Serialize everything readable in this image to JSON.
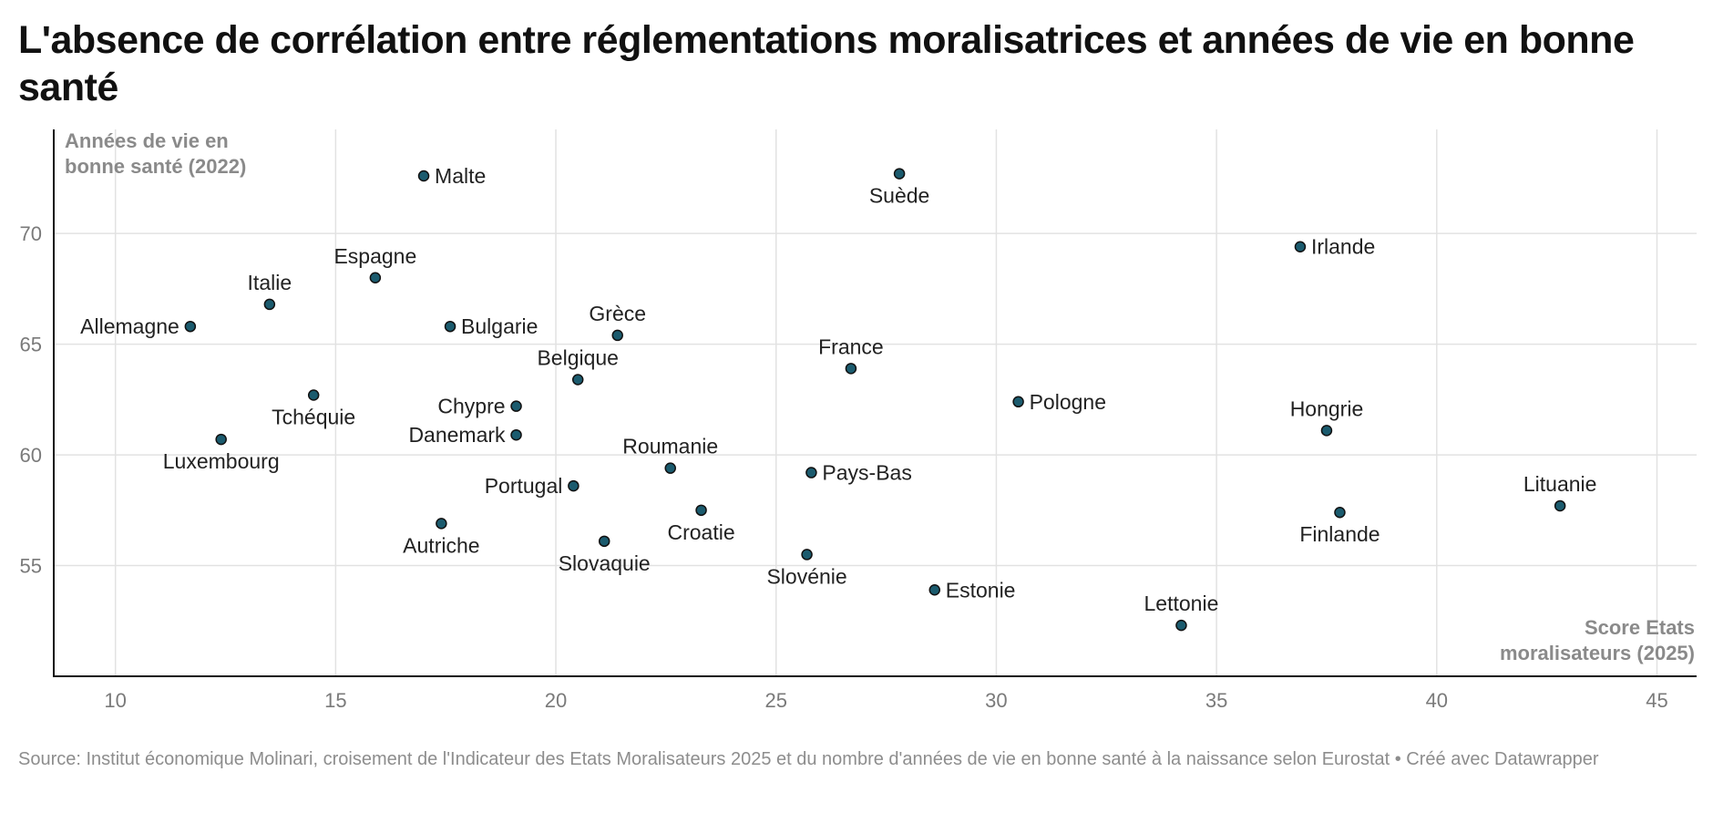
{
  "title": "L'absence de corrélation entre réglementations moralisatrices et années de vie en bonne santé",
  "footer": {
    "source": "Source: Institut économique Molinari, croisement de l'Indicateur des Etats Moralisateurs 2025 et du nombre d'années de vie en bonne santé à la naissance selon Eurostat • Créé avec Datawrapper"
  },
  "chart_data": {
    "type": "scatter",
    "title": "L'absence de corrélation entre réglementations moralisatrices et années de vie en bonne santé",
    "xlabel": [
      "Score Etats",
      "moralisateurs (2025)"
    ],
    "ylabel": [
      "Années de vie en",
      "bonne santé (2022)"
    ],
    "xlim": [
      8.6,
      45.9
    ],
    "ylim": [
      50,
      74.7
    ],
    "xticks": [
      10,
      15,
      20,
      25,
      30,
      35,
      40,
      45
    ],
    "yticks": [
      55,
      60,
      65,
      70
    ],
    "grid": true,
    "colors": {
      "point": "#1b5b6e"
    },
    "points": [
      {
        "label": "Malte",
        "x": 17.0,
        "y": 72.6,
        "pos": "right"
      },
      {
        "label": "Suède",
        "x": 27.8,
        "y": 72.7,
        "pos": "below"
      },
      {
        "label": "Irlande",
        "x": 36.9,
        "y": 69.4,
        "pos": "right"
      },
      {
        "label": "Espagne",
        "x": 15.9,
        "y": 68.0,
        "pos": "above"
      },
      {
        "label": "Italie",
        "x": 13.5,
        "y": 66.8,
        "pos": "above"
      },
      {
        "label": "Allemagne",
        "x": 11.7,
        "y": 65.8,
        "pos": "left"
      },
      {
        "label": "Bulgarie",
        "x": 17.6,
        "y": 65.8,
        "pos": "right"
      },
      {
        "label": "Grèce",
        "x": 21.4,
        "y": 65.4,
        "pos": "above"
      },
      {
        "label": "Belgique",
        "x": 20.5,
        "y": 63.4,
        "pos": "above"
      },
      {
        "label": "France",
        "x": 26.7,
        "y": 63.9,
        "pos": "above"
      },
      {
        "label": "Pologne",
        "x": 30.5,
        "y": 62.4,
        "pos": "right"
      },
      {
        "label": "Tchéquie",
        "x": 14.5,
        "y": 62.7,
        "pos": "below"
      },
      {
        "label": "Chypre",
        "x": 19.1,
        "y": 62.2,
        "pos": "left"
      },
      {
        "label": "Danemark",
        "x": 19.1,
        "y": 60.9,
        "pos": "left"
      },
      {
        "label": "Hongrie",
        "x": 37.5,
        "y": 61.1,
        "pos": "above"
      },
      {
        "label": "Luxembourg",
        "x": 12.4,
        "y": 60.7,
        "pos": "below"
      },
      {
        "label": "Roumanie",
        "x": 22.6,
        "y": 59.4,
        "pos": "above"
      },
      {
        "label": "Pays-Bas",
        "x": 25.8,
        "y": 59.2,
        "pos": "right"
      },
      {
        "label": "Portugal",
        "x": 20.4,
        "y": 58.6,
        "pos": "left"
      },
      {
        "label": "Lituanie",
        "x": 42.8,
        "y": 57.7,
        "pos": "above"
      },
      {
        "label": "Croatie",
        "x": 23.3,
        "y": 57.5,
        "pos": "below"
      },
      {
        "label": "Finlande",
        "x": 37.8,
        "y": 57.4,
        "pos": "below"
      },
      {
        "label": "Autriche",
        "x": 17.4,
        "y": 56.9,
        "pos": "below"
      },
      {
        "label": "Slovaquie",
        "x": 21.1,
        "y": 56.1,
        "pos": "below"
      },
      {
        "label": "Slovénie",
        "x": 25.7,
        "y": 55.5,
        "pos": "below"
      },
      {
        "label": "Estonie",
        "x": 28.6,
        "y": 53.9,
        "pos": "right"
      },
      {
        "label": "Lettonie",
        "x": 34.2,
        "y": 52.3,
        "pos": "above"
      }
    ]
  }
}
